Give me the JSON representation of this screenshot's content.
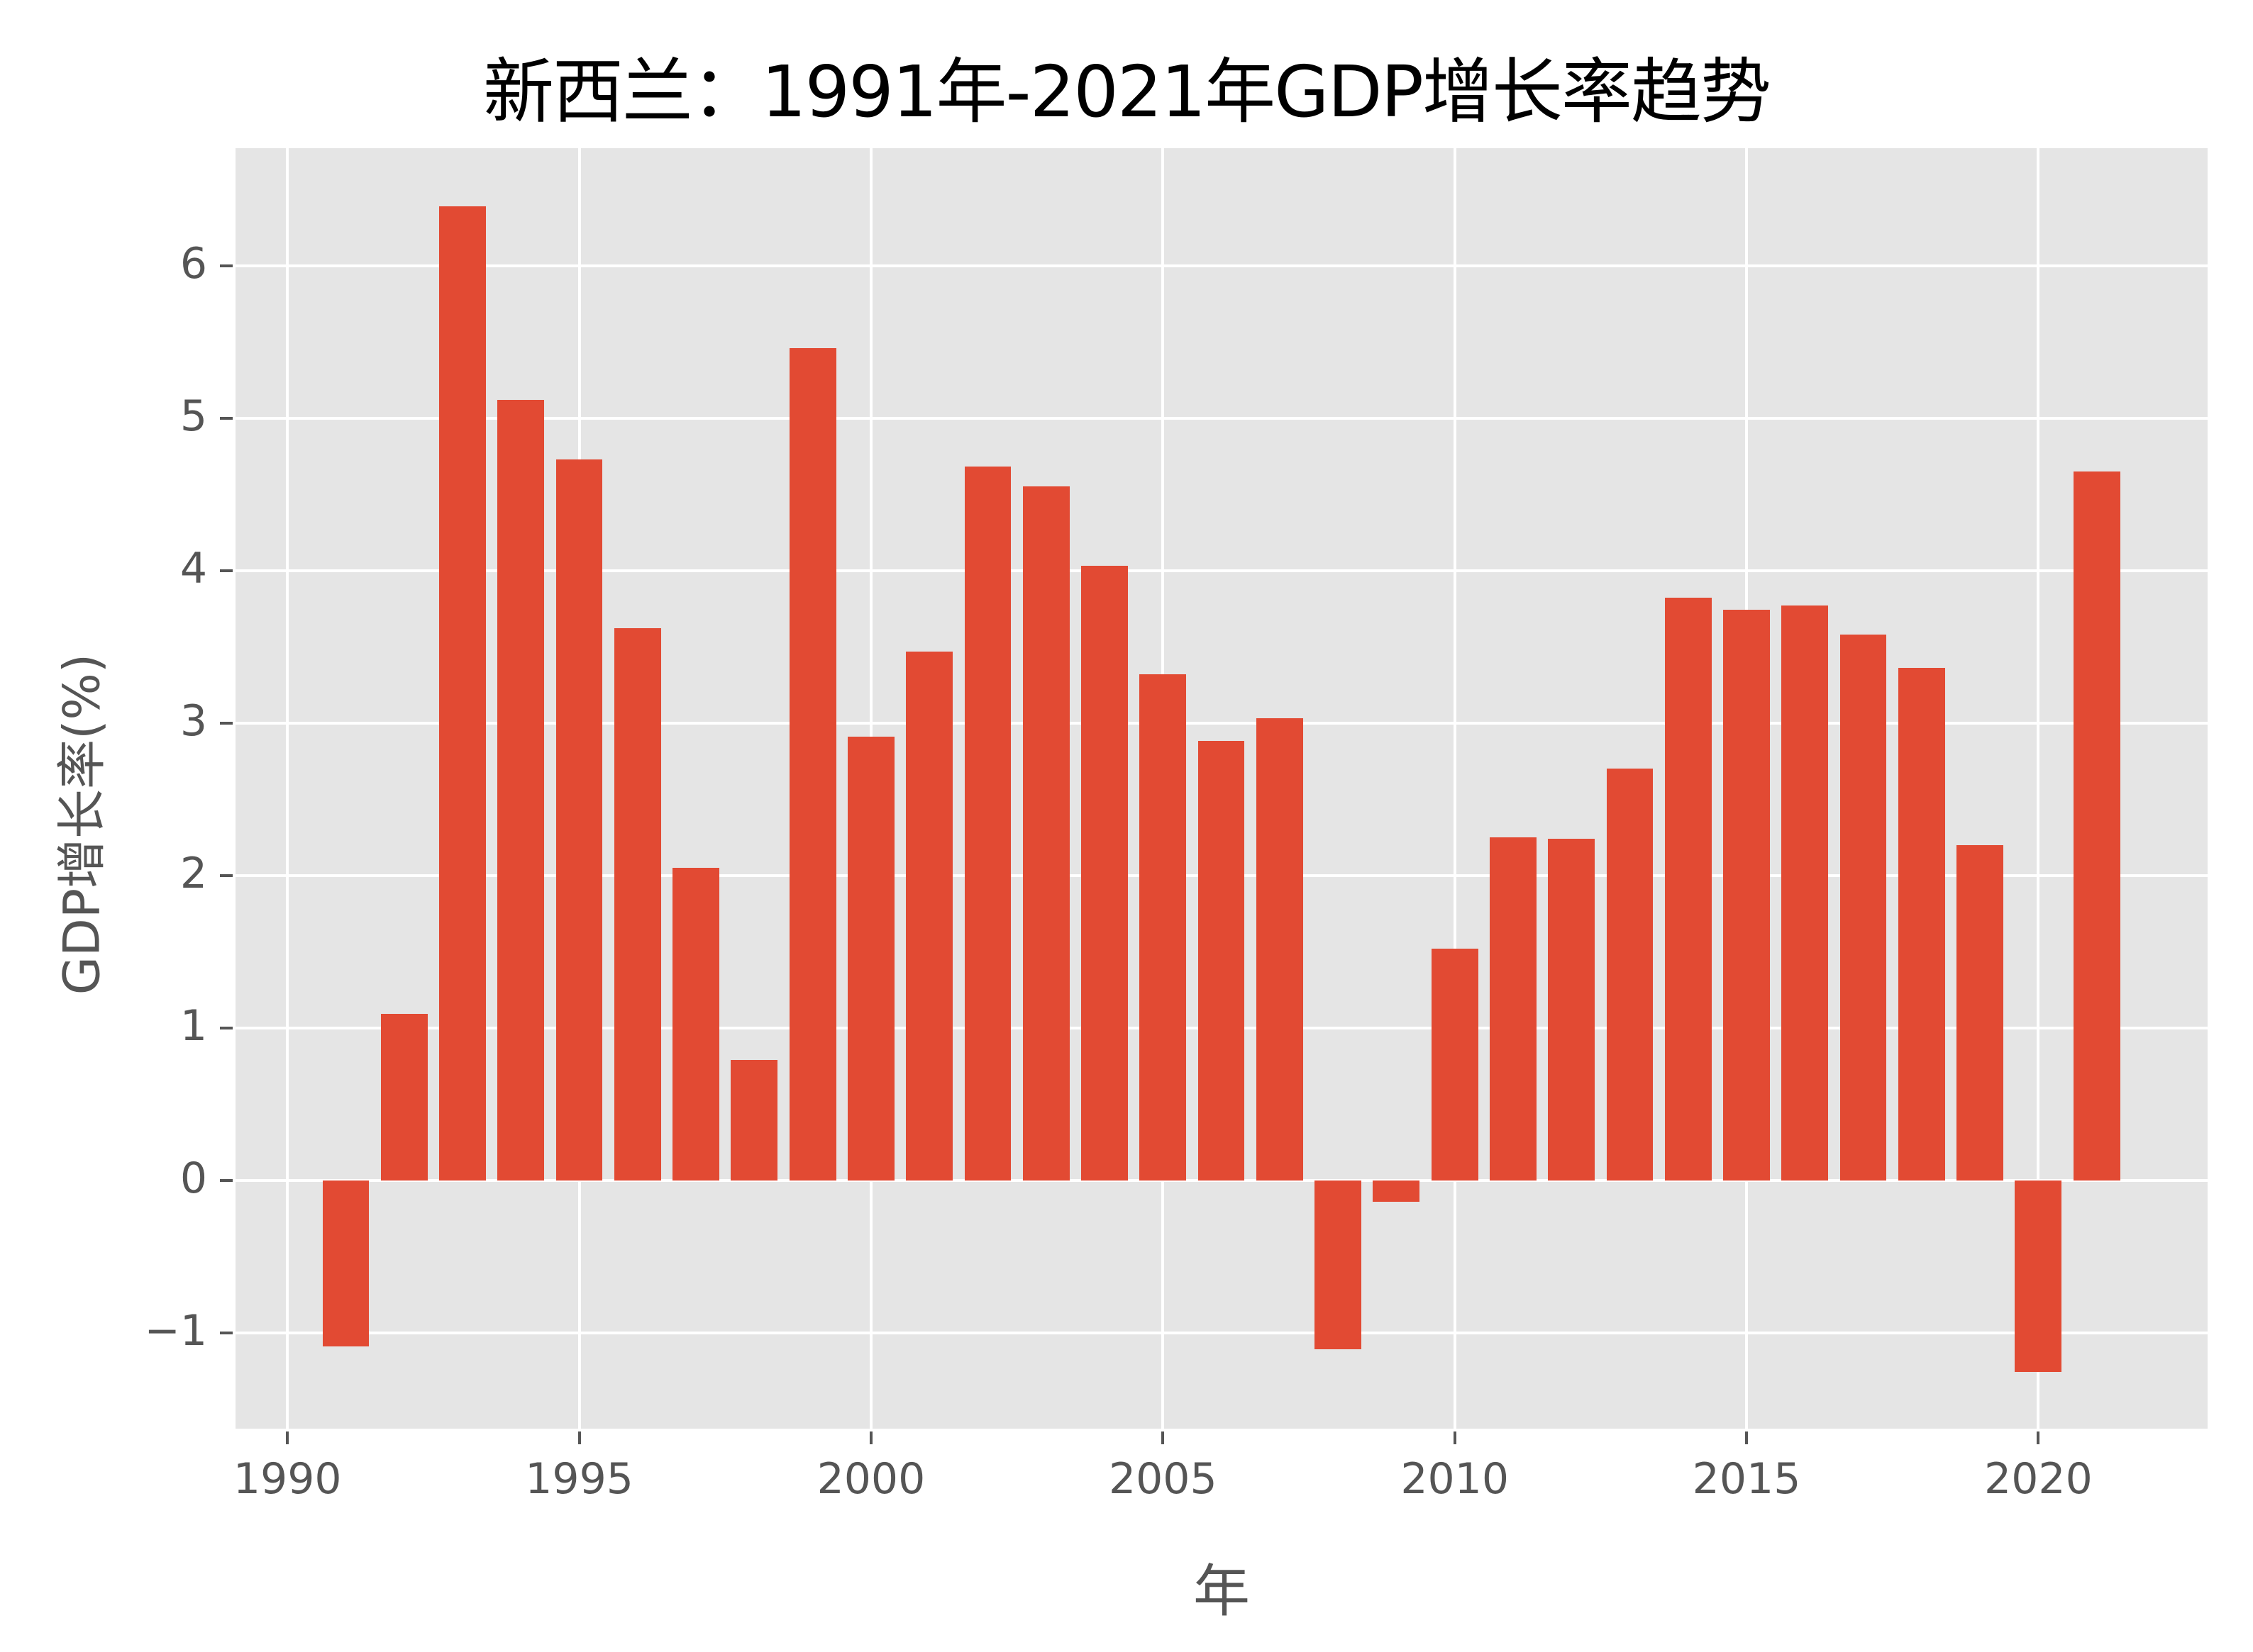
{
  "chart_data": {
    "type": "bar",
    "title": "新西兰：1991年-2021年GDP增长率趋势",
    "xlabel": "年",
    "ylabel": "GDP增长率(%)",
    "x": [
      1991,
      1992,
      1993,
      1994,
      1995,
      1996,
      1997,
      1998,
      1999,
      2000,
      2001,
      2002,
      2003,
      2004,
      2005,
      2006,
      2007,
      2008,
      2009,
      2010,
      2011,
      2012,
      2013,
      2014,
      2015,
      2016,
      2017,
      2018,
      2019,
      2020,
      2021
    ],
    "values": [
      -1.09,
      1.09,
      6.39,
      5.12,
      4.73,
      3.62,
      2.05,
      0.79,
      5.46,
      2.91,
      3.47,
      4.68,
      4.55,
      4.03,
      3.32,
      2.88,
      3.03,
      -1.11,
      -0.14,
      1.52,
      2.25,
      2.24,
      2.7,
      3.82,
      3.74,
      3.77,
      3.58,
      3.36,
      2.2,
      -1.26,
      4.65
    ],
    "xticks": [
      1990,
      1995,
      2000,
      2005,
      2010,
      2015,
      2020
    ],
    "yticks": [
      -1,
      0,
      1,
      2,
      3,
      4,
      5,
      6
    ],
    "ytick_labels": [
      "−1",
      "0",
      "1",
      "2",
      "3",
      "4",
      "5",
      "6"
    ],
    "xlim": [
      1989.11,
      2022.9
    ],
    "ylim": [
      -1.63,
      6.77
    ],
    "bar_width": 0.8,
    "grid": true,
    "legend": null,
    "colors": {
      "bar": "#e24a33",
      "background": "#e5e5e5",
      "grid": "#ffffff",
      "tick_text": "#555555"
    }
  }
}
